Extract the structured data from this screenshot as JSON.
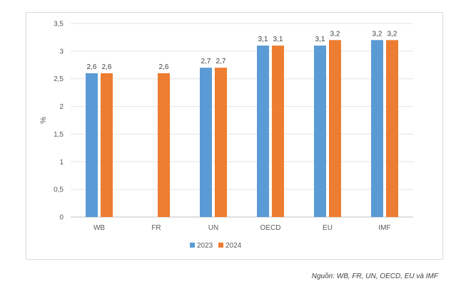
{
  "chart_data": {
    "type": "bar",
    "categories": [
      "WB",
      "FR",
      "UN",
      "OECD",
      "EU",
      "IMF"
    ],
    "series": [
      {
        "name": "2023",
        "color": "#5b9bd5",
        "values": [
          2.6,
          null,
          2.7,
          3.1,
          3.1,
          3.2
        ],
        "labels": [
          "2,6",
          "",
          "2,7",
          "3,1",
          "3,1",
          "3,2"
        ]
      },
      {
        "name": "2024",
        "color": "#ed7d31",
        "values": [
          2.6,
          2.6,
          2.7,
          3.1,
          3.2,
          3.2
        ],
        "labels": [
          "2,6",
          "2,6",
          "2,7",
          "3,1",
          "3,2",
          "3,2"
        ]
      }
    ],
    "yticks": [
      0,
      0.5,
      1,
      1.5,
      2,
      2.5,
      3,
      3.5
    ],
    "ytick_labels": [
      "0",
      "0,5",
      "1",
      "1,5",
      "2",
      "2,5",
      "3",
      "3,5"
    ],
    "ylim": [
      0,
      3.5
    ],
    "ylabel": "%",
    "xlabel": "",
    "title": "",
    "grid": true,
    "legend": "bottom-center"
  },
  "source_note": "Nguồn: WB, FR, UN, OECD, EU và IMF"
}
